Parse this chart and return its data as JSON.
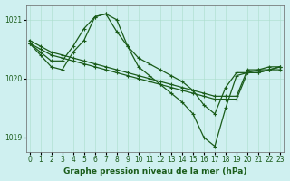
{
  "title": "Graphe pression niveau de la mer (hPa)",
  "bg_color": "#cff0f0",
  "grid_color": "#aaddcc",
  "line_color": "#1a5c1a",
  "ylim": [
    1018.75,
    1021.25
  ],
  "yticks": [
    1019,
    1020,
    1021
  ],
  "xlim": [
    -0.3,
    23.3
  ],
  "xticks": [
    0,
    1,
    2,
    3,
    4,
    5,
    6,
    7,
    8,
    9,
    10,
    11,
    12,
    13,
    14,
    15,
    16,
    17,
    18,
    19,
    20,
    21,
    22,
    23
  ],
  "series": [
    [
      1020.65,
      1020.55,
      1020.45,
      1020.4,
      1020.35,
      1020.3,
      1020.25,
      1020.2,
      1020.15,
      1020.1,
      1020.05,
      1020.0,
      1019.95,
      1019.9,
      1019.85,
      1019.8,
      1019.75,
      1019.7,
      1019.7,
      1019.7,
      1020.15,
      1020.15,
      1020.2,
      1020.2
    ],
    [
      1020.6,
      1020.5,
      1020.4,
      1020.35,
      1020.3,
      1020.25,
      1020.2,
      1020.15,
      1020.1,
      1020.05,
      1020.0,
      1019.95,
      1019.9,
      1019.85,
      1019.8,
      1019.75,
      1019.7,
      1019.65,
      1019.65,
      1019.65,
      1020.1,
      1020.1,
      1020.15,
      1020.15
    ],
    [
      1020.6,
      1020.45,
      1020.3,
      1020.3,
      1020.55,
      1020.85,
      1021.05,
      1021.1,
      1020.8,
      1020.55,
      1020.35,
      1020.25,
      1020.15,
      1020.05,
      1019.95,
      1019.8,
      1019.55,
      1019.4,
      1019.85,
      1020.1,
      1020.1,
      1020.15,
      1020.15,
      1020.2
    ],
    [
      1020.6,
      1020.4,
      1020.2,
      1020.15,
      1020.45,
      1020.65,
      1021.05,
      1021.1,
      1021.0,
      1020.55,
      1020.2,
      1020.05,
      1019.9,
      1019.75,
      1019.6,
      1019.4,
      1019.0,
      1018.85,
      1019.5,
      1020.05,
      1020.1,
      1020.1,
      1020.15,
      1020.2
    ]
  ],
  "marker": "+",
  "markersize": 3.5,
  "linewidth": 0.9,
  "title_fontsize": 6.5,
  "tick_fontsize": 5.5
}
